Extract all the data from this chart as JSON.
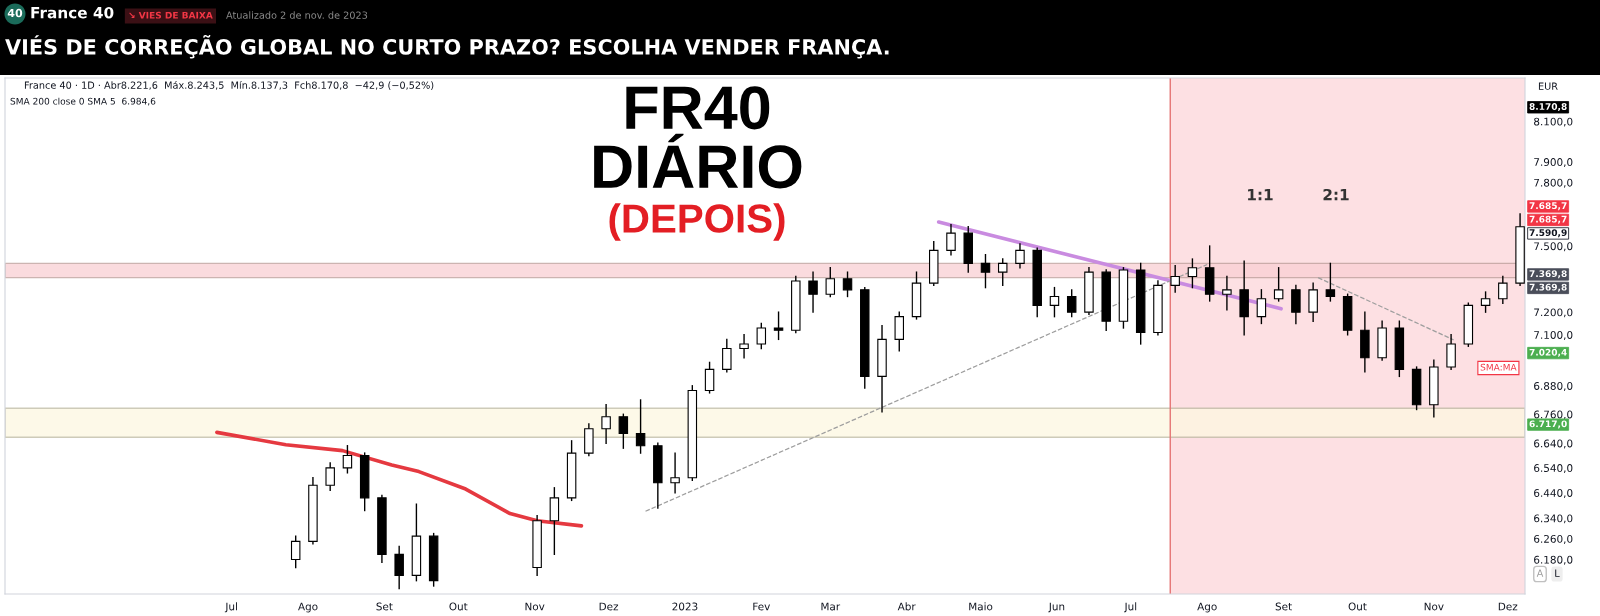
{
  "chart_data": {
    "type": "candlestick",
    "title": "VIÉS DE CORREÇÃO GLOBAL NO CURTO PRAZO? ESCOLHA VENDER FRANÇA.",
    "annotations": [
      "40",
      "France 40",
      "↘ VIES DE BAIXA",
      "Atualizado 2 de nov. de 2023",
      "France 40 · 1D · Abr8.221,6  Máx.8.243,5  Mín.8.137,3  Fch8.170,8  −42,9 (−0,52%)",
      "SMA 200 close 0 SMA 5  6.984,6",
      "FR40",
      "DIÁRIO",
      "(DEPOIS)",
      "EUR",
      "A",
      "L",
      "1:1",
      "2:1",
      {
        "text": "8.170,8",
        "x": "2023-12-08",
        "y": 8170.8
      },
      {
        "text": "7.685,7",
        "x": "2023-12-08",
        "y": 7685.7
      },
      {
        "text": "7.685,7",
        "x": "2023-12-08",
        "y": 7685.7
      },
      {
        "text": "7.590,9",
        "x": "2023-12-08",
        "y": 7590.9
      },
      {
        "text": "7.369,8",
        "x": "2023-12-08",
        "y": 7369.8
      },
      {
        "text": "7.369,8",
        "x": "2023-12-08",
        "y": 7369.8
      },
      {
        "text": "7.020,4",
        "x": "2023-12-08",
        "y": 7020.4
      },
      {
        "text": "6.717,0",
        "x": "2023-12-08",
        "y": 6717.0
      },
      {
        "text": "SMA:MA",
        "x": "2023-12-08",
        "y": 6956
      }
    ],
    "xlim": [
      "2022-03-31",
      "2023-12-08"
    ],
    "ylim": [
      6050,
      8320
    ],
    "log": true,
    "xticks": [
      {
        "value": "2022-07-01",
        "label": "Jul"
      },
      {
        "value": "2022-08-01",
        "label": "Ago"
      },
      {
        "value": "2022-09-01",
        "label": "Set"
      },
      {
        "value": "2022-10-01",
        "label": "Out"
      },
      {
        "value": "2022-11-01",
        "label": "Nov"
      },
      {
        "value": "2022-12-01",
        "label": "Dez"
      },
      {
        "value": "2023-01-01",
        "label": "2023"
      },
      {
        "value": "2023-02-01",
        "label": "Fev"
      },
      {
        "value": "2023-03-01",
        "label": "Mar"
      },
      {
        "value": "2023-04-01",
        "label": "Abr"
      },
      {
        "value": "2023-05-01",
        "label": "Maio"
      },
      {
        "value": "2023-06-01",
        "label": "Jun"
      },
      {
        "value": "2023-07-01",
        "label": "Jul"
      },
      {
        "value": "2023-08-01",
        "label": "Ago"
      },
      {
        "value": "2023-09-01",
        "label": "Set"
      },
      {
        "value": "2023-10-01",
        "label": "Out"
      },
      {
        "value": "2023-11-01",
        "label": "Nov"
      },
      {
        "value": "2023-12-01",
        "label": "Dez"
      }
    ],
    "yticks": [
      {
        "value": 8100,
        "label": "8.100,0"
      },
      {
        "value": 7900,
        "label": "7.900,0"
      },
      {
        "value": 7800,
        "label": "7.800,0"
      },
      {
        "value": 7500,
        "label": "7.500,0"
      },
      {
        "value": 7200,
        "label": "7.200,0"
      },
      {
        "value": 7100,
        "label": "7.100,0"
      },
      {
        "value": 6880,
        "label": "6.880,0"
      },
      {
        "value": 6760,
        "label": "6.760,0"
      },
      {
        "value": 6640,
        "label": "6.640,0"
      },
      {
        "value": 6540,
        "label": "6.540,0"
      },
      {
        "value": 6440,
        "label": "6.440,0"
      },
      {
        "value": 6340,
        "label": "6.340,0"
      },
      {
        "value": 6260,
        "label": "6.260,0"
      },
      {
        "value": 6180,
        "label": "6.180,0"
      }
    ],
    "bands": [
      {
        "axis": "x",
        "from": "2023-07-17",
        "to": "2023-12-08",
        "color": "#fde0e3"
      },
      {
        "axis": "y",
        "from": 6665,
        "to": 6785,
        "color": "#fdf8e1"
      },
      {
        "axis": "y",
        "from": 7355,
        "to": 7420,
        "color": "#f9cfd3"
      }
    ],
    "ref_lines": [
      {
        "axis": "x",
        "value": "2023-07-17",
        "color": "#e57373"
      }
    ],
    "series": [
      {
        "type": "line",
        "color": "#e53940",
        "x": [
          "2022-06-25",
          "2022-07-23",
          "2022-08-15",
          "2022-09-04",
          "2022-09-15",
          "2022-10-04",
          "2022-10-22",
          "2022-11-02",
          "2022-11-20"
        ],
        "values": [
          6685,
          6634,
          6610,
          6552,
          6525,
          6455,
          6358,
          6330,
          6310
        ]
      },
      {
        "type": "line",
        "color": "#c98be0",
        "x": [
          "2023-04-14",
          "2023-08-31"
        ],
        "values": [
          7612,
          7215
        ]
      },
      {
        "type": "line",
        "color": "#9e9e9e",
        "line_style": "dashed",
        "x": [
          "2022-12-16",
          "2023-08-01"
        ],
        "values": [
          6367,
          7415
        ]
      },
      {
        "type": "line",
        "color": "#9e9e9e",
        "line_style": "dashed",
        "x": [
          "2023-09-15",
          "2023-11-09"
        ],
        "values": [
          7355,
          7078
        ]
      },
      {
        "color": "#000000",
        "x": [
          "2022-07-27",
          "2022-08-03",
          "2022-08-10",
          "2022-08-17",
          "2022-08-24",
          "2022-08-31",
          "2022-09-07",
          "2022-09-14",
          "2022-09-21",
          "2022-11-02",
          "2022-11-09",
          "2022-11-16",
          "2022-11-23",
          "2022-11-30",
          "2022-12-07",
          "2022-12-14",
          "2022-12-21",
          "2022-12-28",
          "2023-01-04",
          "2023-01-11",
          "2023-01-18",
          "2023-01-25",
          "2023-02-01",
          "2023-02-08",
          "2023-02-15",
          "2023-02-22",
          "2023-03-01",
          "2023-03-08",
          "2023-03-15",
          "2023-03-22",
          "2023-03-29",
          "2023-04-05",
          "2023-04-12",
          "2023-04-19",
          "2023-04-26",
          "2023-05-03",
          "2023-05-10",
          "2023-05-17",
          "2023-05-24",
          "2023-05-31",
          "2023-06-07",
          "2023-06-14",
          "2023-06-21",
          "2023-06-28",
          "2023-07-05",
          "2023-07-12",
          "2023-07-19",
          "2023-07-26",
          "2023-08-02",
          "2023-08-09",
          "2023-08-16",
          "2023-08-23",
          "2023-08-30",
          "2023-09-06",
          "2023-09-13",
          "2023-09-20",
          "2023-09-27",
          "2023-10-04",
          "2023-10-11",
          "2023-10-18",
          "2023-10-25",
          "2023-11-01",
          "2023-11-08",
          "2023-11-15",
          "2023-11-22",
          "2023-11-29",
          "2023-12-06"
        ],
        "ohlc": [
          [
            6180,
            6270,
            6150,
            6250
          ],
          [
            6250,
            6500,
            6240,
            6470
          ],
          [
            6470,
            6560,
            6450,
            6540
          ],
          [
            6540,
            6630,
            6520,
            6590
          ],
          [
            6590,
            6600,
            6370,
            6420
          ],
          [
            6420,
            6430,
            6170,
            6200
          ],
          [
            6200,
            6230,
            6070,
            6120
          ],
          [
            6120,
            6395,
            6100,
            6270
          ],
          [
            6270,
            6280,
            6080,
            6100
          ],
          [
            6150,
            6350,
            6120,
            6330
          ],
          [
            6330,
            6460,
            6200,
            6420
          ],
          [
            6420,
            6650,
            6410,
            6600
          ],
          [
            6600,
            6720,
            6590,
            6700
          ],
          [
            6700,
            6800,
            6640,
            6750
          ],
          [
            6750,
            6760,
            6620,
            6680
          ],
          [
            6680,
            6820,
            6600,
            6630
          ],
          [
            6630,
            6640,
            6380,
            6480
          ],
          [
            6480,
            6600,
            6440,
            6500
          ],
          [
            6500,
            6880,
            6490,
            6860
          ],
          [
            6860,
            6980,
            6850,
            6950
          ],
          [
            6950,
            7080,
            6940,
            7040
          ],
          [
            7040,
            7100,
            7000,
            7060
          ],
          [
            7060,
            7150,
            7040,
            7130
          ],
          [
            7130,
            7200,
            7080,
            7120
          ],
          [
            7120,
            7360,
            7110,
            7340
          ],
          [
            7340,
            7380,
            7200,
            7280
          ],
          [
            7280,
            7400,
            7270,
            7350
          ],
          [
            7350,
            7380,
            7270,
            7300
          ],
          [
            7300,
            7310,
            6870,
            6920
          ],
          [
            6920,
            7140,
            6770,
            7080
          ],
          [
            7080,
            7200,
            7030,
            7180
          ],
          [
            7180,
            7380,
            7170,
            7330
          ],
          [
            7330,
            7520,
            7320,
            7480
          ],
          [
            7480,
            7600,
            7460,
            7560
          ],
          [
            7560,
            7590,
            7380,
            7420
          ],
          [
            7420,
            7460,
            7310,
            7380
          ],
          [
            7380,
            7440,
            7320,
            7420
          ],
          [
            7420,
            7510,
            7400,
            7480
          ],
          [
            7480,
            7490,
            7180,
            7230
          ],
          [
            7230,
            7310,
            7180,
            7270
          ],
          [
            7270,
            7300,
            7180,
            7200
          ],
          [
            7200,
            7400,
            7190,
            7380
          ],
          [
            7380,
            7390,
            7120,
            7160
          ],
          [
            7160,
            7400,
            7130,
            7390
          ],
          [
            7390,
            7420,
            7060,
            7110
          ],
          [
            7110,
            7340,
            7100,
            7320
          ],
          [
            7320,
            7410,
            7290,
            7360
          ],
          [
            7360,
            7440,
            7310,
            7400
          ],
          [
            7400,
            7500,
            7250,
            7280
          ],
          [
            7280,
            7360,
            7210,
            7300
          ],
          [
            7300,
            7430,
            7100,
            7180
          ],
          [
            7180,
            7300,
            7150,
            7260
          ],
          [
            7260,
            7400,
            7250,
            7300
          ],
          [
            7300,
            7320,
            7150,
            7200
          ],
          [
            7200,
            7330,
            7160,
            7300
          ],
          [
            7300,
            7420,
            7250,
            7270
          ],
          [
            7270,
            7280,
            7100,
            7120
          ],
          [
            7120,
            7200,
            6940,
            7000
          ],
          [
            7000,
            7160,
            6990,
            7130
          ],
          [
            7130,
            7160,
            6920,
            6950
          ],
          [
            6950,
            6960,
            6780,
            6800
          ],
          [
            6800,
            6990,
            6750,
            6960
          ],
          [
            6960,
            7100,
            6950,
            7060
          ],
          [
            7060,
            7240,
            7050,
            7230
          ],
          [
            7230,
            7290,
            7200,
            7260
          ],
          [
            7260,
            7360,
            7240,
            7330
          ],
          [
            7330,
            7650,
            7320,
            7590
          ]
        ]
      }
    ]
  }
}
